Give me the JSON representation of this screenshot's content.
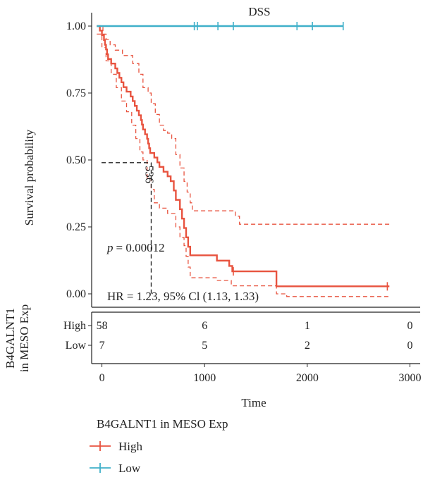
{
  "chart_data": {
    "type": "line",
    "title": "DSS",
    "xlabel": "Time",
    "ylabel": "Survival probability",
    "xlim": [
      -100,
      3100
    ],
    "ylim": [
      -0.05,
      1.05
    ],
    "xticks": [
      0,
      1000,
      2000,
      3000
    ],
    "xtick_labels": [
      "0",
      "1000",
      "2000",
      "3000"
    ],
    "yticks": [
      0.0,
      0.25,
      0.5,
      0.75,
      1.0
    ],
    "ytick_labels": [
      "0.00",
      "0.25",
      "0.50",
      "0.75",
      "1.00"
    ],
    "grid": false,
    "series": [
      {
        "name": "High",
        "color": "#e8533f",
        "line_style": "solid",
        "points": [
          [
            -50,
            1.0
          ],
          [
            -20,
            0.983
          ],
          [
            0,
            0.966
          ],
          [
            20,
            0.948
          ],
          [
            30,
            0.93
          ],
          [
            40,
            0.913
          ],
          [
            50,
            0.895
          ],
          [
            60,
            0.877
          ],
          [
            90,
            0.86
          ],
          [
            130,
            0.842
          ],
          [
            150,
            0.825
          ],
          [
            170,
            0.807
          ],
          [
            190,
            0.79
          ],
          [
            210,
            0.772
          ],
          [
            240,
            0.755
          ],
          [
            280,
            0.737
          ],
          [
            300,
            0.72
          ],
          [
            320,
            0.702
          ],
          [
            340,
            0.684
          ],
          [
            360,
            0.667
          ],
          [
            380,
            0.649
          ],
          [
            390,
            0.632
          ],
          [
            400,
            0.614
          ],
          [
            420,
            0.596
          ],
          [
            440,
            0.579
          ],
          [
            450,
            0.561
          ],
          [
            460,
            0.544
          ],
          [
            470,
            0.526
          ],
          [
            510,
            0.509
          ],
          [
            540,
            0.491
          ],
          [
            560,
            0.474
          ],
          [
            600,
            0.456
          ],
          [
            640,
            0.439
          ],
          [
            670,
            0.421
          ],
          [
            700,
            0.386
          ],
          [
            720,
            0.351
          ],
          [
            760,
            0.316
          ],
          [
            780,
            0.281
          ],
          [
            800,
            0.246
          ],
          [
            820,
            0.211
          ],
          [
            840,
            0.176
          ],
          [
            860,
            0.144
          ],
          [
            1120,
            0.124
          ],
          [
            1240,
            0.104
          ],
          [
            1270,
            0.084
          ],
          [
            1690,
            0.084
          ],
          [
            1700,
            0.028
          ],
          [
            2800,
            0.028
          ]
        ],
        "censor_marks": [
          [
            1280,
            0.084
          ],
          [
            2780,
            0.028
          ]
        ]
      },
      {
        "name": "95% CI upper",
        "color": "#e8533f",
        "line_style": "dashed",
        "points": [
          [
            -50,
            1.0
          ],
          [
            -20,
            1.0
          ],
          [
            10,
            0.97
          ],
          [
            40,
            0.95
          ],
          [
            80,
            0.93
          ],
          [
            130,
            0.91
          ],
          [
            200,
            0.89
          ],
          [
            300,
            0.86
          ],
          [
            360,
            0.82
          ],
          [
            400,
            0.77
          ],
          [
            450,
            0.75
          ],
          [
            480,
            0.71
          ],
          [
            520,
            0.67
          ],
          [
            560,
            0.63
          ],
          [
            600,
            0.61
          ],
          [
            640,
            0.6
          ],
          [
            680,
            0.58
          ],
          [
            720,
            0.52
          ],
          [
            760,
            0.47
          ],
          [
            800,
            0.42
          ],
          [
            830,
            0.38
          ],
          [
            860,
            0.34
          ],
          [
            880,
            0.31
          ],
          [
            1240,
            0.31
          ],
          [
            1300,
            0.29
          ],
          [
            1340,
            0.26
          ],
          [
            2800,
            0.26
          ]
        ]
      },
      {
        "name": "95% CI lower",
        "color": "#e8533f",
        "line_style": "dashed",
        "points": [
          [
            -50,
            0.97
          ],
          [
            0,
            0.92
          ],
          [
            40,
            0.87
          ],
          [
            90,
            0.82
          ],
          [
            140,
            0.77
          ],
          [
            190,
            0.72
          ],
          [
            240,
            0.68
          ],
          [
            290,
            0.63
          ],
          [
            330,
            0.58
          ],
          [
            370,
            0.53
          ],
          [
            400,
            0.5
          ],
          [
            440,
            0.43
          ],
          [
            480,
            0.39
          ],
          [
            510,
            0.34
          ],
          [
            560,
            0.32
          ],
          [
            640,
            0.3
          ],
          [
            720,
            0.25
          ],
          [
            760,
            0.21
          ],
          [
            800,
            0.18
          ],
          [
            820,
            0.14
          ],
          [
            840,
            0.1
          ],
          [
            860,
            0.06
          ],
          [
            1120,
            0.05
          ],
          [
            1260,
            0.03
          ],
          [
            1700,
            0.0
          ],
          [
            1800,
            -0.01
          ],
          [
            2800,
            -0.01
          ]
        ]
      },
      {
        "name": "Low",
        "color": "#3fb0c9",
        "line_style": "solid",
        "points": [
          [
            -50,
            1.0
          ],
          [
            2350,
            1.0
          ]
        ],
        "censor_marks": [
          [
            900,
            1.0
          ],
          [
            930,
            1.0
          ],
          [
            1130,
            1.0
          ],
          [
            1280,
            1.0
          ],
          [
            1900,
            1.0
          ],
          [
            2050,
            1.0
          ],
          [
            2350,
            1.0
          ]
        ]
      }
    ],
    "annotations": {
      "p_value": "= 0.00012",
      "p_symbol": "p",
      "hr_text": "HR = 1.23, 95% Cl (1.13, 1.33)",
      "median_label": "536",
      "median_x": 480,
      "median_y": 0.49
    },
    "risk_table": {
      "title_line1": "B4GALNT1",
      "title_line2": "in MESO Exp",
      "rows": [
        {
          "label": "High",
          "values": [
            "58",
            "6",
            "1",
            "0"
          ]
        },
        {
          "label": "Low",
          "values": [
            "7",
            "5",
            "2",
            "0"
          ]
        }
      ],
      "times": [
        0,
        1000,
        2000,
        3000
      ]
    },
    "legend": {
      "title": "B4GALNT1 in MESO Exp",
      "position": "bottom",
      "items": [
        {
          "label": "High",
          "color": "#e8533f"
        },
        {
          "label": "Low",
          "color": "#3fb0c9"
        }
      ]
    }
  }
}
